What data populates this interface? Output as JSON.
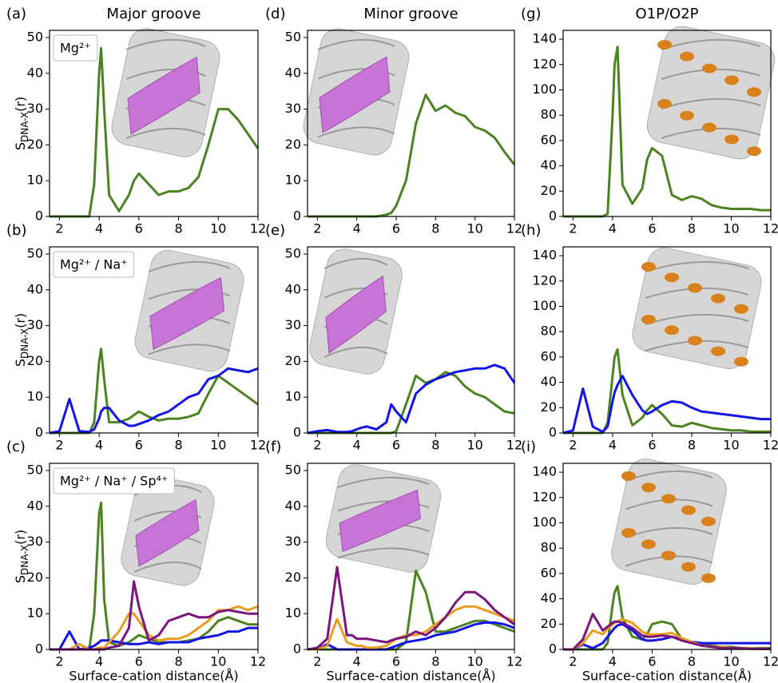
{
  "chart_data": [
    {
      "type": "line",
      "panel_label": "(a)",
      "title": "Major groove",
      "ylabel": [
        "S",
        "DNA-X",
        "(r)"
      ],
      "label": "Mg²⁺",
      "x": [
        1.5,
        2,
        2.5,
        3,
        3.5,
        3.75,
        4,
        4.1,
        4.25,
        4.5,
        5,
        5.5,
        5.75,
        6,
        6.5,
        7,
        7.5,
        8,
        8.5,
        9,
        9.5,
        10,
        10.5,
        11,
        11.5,
        12
      ],
      "xlim": [
        1.5,
        12
      ],
      "ylim": [
        0,
        52
      ],
      "xticks": [
        2,
        4,
        6,
        8,
        10,
        12
      ],
      "yticks": [
        0,
        10,
        20,
        30,
        40,
        50
      ],
      "series": [
        {
          "color": "#4b8321",
          "values": [
            0,
            0,
            0,
            0,
            0,
            9,
            40,
            47,
            30,
            6,
            1.5,
            6,
            10,
            12,
            9,
            6,
            7,
            7,
            8,
            11,
            20,
            30,
            30,
            27,
            23,
            19
          ]
        }
      ]
    },
    {
      "type": "line",
      "panel_label": "(d)",
      "title": "Minor groove",
      "x": [
        1.5,
        2,
        2.5,
        3,
        3.5,
        3.75,
        4,
        4.1,
        4.25,
        4.5,
        5,
        5.5,
        5.75,
        6,
        6.5,
        7,
        7.5,
        8,
        8.5,
        9,
        9.5,
        10,
        10.5,
        11,
        11.5,
        12
      ],
      "xlim": [
        1.5,
        12
      ],
      "ylim": [
        0,
        52
      ],
      "xticks": [
        2,
        4,
        6,
        8,
        10,
        12
      ],
      "yticks": [
        0,
        10,
        20,
        30,
        40,
        50
      ],
      "series": [
        {
          "color": "#4b8321",
          "values": [
            0,
            0,
            0,
            0,
            0,
            0,
            0,
            0,
            0,
            0,
            0,
            0.5,
            1,
            3,
            10,
            26,
            34,
            29.5,
            31,
            29,
            28,
            25,
            24,
            22,
            18,
            14.5
          ]
        }
      ]
    },
    {
      "type": "line",
      "panel_label": "(g)",
      "title": "O1P/O2P",
      "x": [
        1.5,
        2,
        2.5,
        3,
        3.5,
        3.75,
        4,
        4.1,
        4.25,
        4.5,
        5,
        5.5,
        5.75,
        6,
        6.5,
        7,
        7.5,
        8,
        8.5,
        9,
        9.5,
        10,
        10.5,
        11,
        11.5,
        12
      ],
      "xlim": [
        1.5,
        12
      ],
      "ylim": [
        0,
        147
      ],
      "xticks": [
        2,
        4,
        6,
        8,
        10,
        12
      ],
      "yticks": [
        0,
        20,
        40,
        60,
        80,
        100,
        120,
        140
      ],
      "series": [
        {
          "color": "#4b8321",
          "values": [
            0,
            0,
            0,
            0,
            0,
            2,
            80,
            120,
            134,
            25,
            10,
            22,
            45,
            54,
            48,
            17,
            13,
            16,
            14,
            9,
            7,
            6,
            6,
            6,
            5,
            5
          ]
        }
      ]
    },
    {
      "type": "line",
      "panel_label": "(b)",
      "ylabel": [
        "S",
        "DNA-X",
        "(r)"
      ],
      "label": "Mg²⁺ / Na⁺",
      "x": [
        1.5,
        2,
        2.5,
        3,
        3.5,
        3.75,
        4,
        4.1,
        4.25,
        4.5,
        5,
        5.5,
        5.75,
        6,
        6.5,
        7,
        7.5,
        8,
        8.5,
        9,
        9.5,
        10,
        10.5,
        11,
        11.5,
        12
      ],
      "xlim": [
        1.5,
        12
      ],
      "ylim": [
        0,
        52
      ],
      "xticks": [
        2,
        4,
        6,
        8,
        10,
        12
      ],
      "yticks": [
        0,
        10,
        20,
        30,
        40,
        50
      ],
      "series": [
        {
          "color": "#4b8321",
          "values": [
            0,
            0,
            0,
            0,
            0,
            3,
            20,
            23.5,
            15,
            3,
            3,
            4,
            5,
            6,
            4.5,
            3.5,
            4,
            4,
            4.5,
            5.5,
            11,
            16,
            14,
            12,
            10,
            8
          ]
        },
        {
          "color": "#1414e6",
          "values": [
            0,
            0.5,
            9.5,
            0.5,
            0.3,
            1,
            4,
            6,
            7,
            7,
            3.5,
            2,
            2,
            2.5,
            3.5,
            5,
            6,
            8,
            10,
            11,
            15,
            16,
            18,
            17.5,
            17,
            18
          ]
        }
      ]
    },
    {
      "type": "line",
      "panel_label": "(e)",
      "x": [
        1.5,
        2,
        2.5,
        3,
        3.5,
        3.75,
        4,
        4.1,
        4.25,
        4.5,
        5,
        5.5,
        5.75,
        6,
        6.5,
        7,
        7.5,
        8,
        8.5,
        9,
        9.5,
        10,
        10.5,
        11,
        11.5,
        12
      ],
      "xlim": [
        1.5,
        12
      ],
      "ylim": [
        0,
        52
      ],
      "xticks": [
        2,
        4,
        6,
        8,
        10,
        12
      ],
      "yticks": [
        0,
        10,
        20,
        30,
        40,
        50
      ],
      "series": [
        {
          "color": "#4b8321",
          "values": [
            0,
            0,
            0,
            0,
            0,
            0,
            0,
            0,
            0,
            0,
            0,
            0,
            0,
            0.5,
            8,
            16,
            14,
            15,
            17,
            16,
            13,
            11,
            10,
            8,
            6,
            5.5
          ]
        },
        {
          "color": "#1414e6",
          "values": [
            0,
            0.5,
            0.8,
            0.3,
            0.3,
            0.5,
            1,
            1.2,
            1.5,
            1.8,
            1,
            3,
            8,
            6,
            3,
            11,
            13.5,
            15,
            16,
            17,
            17.5,
            18,
            18,
            19,
            18,
            14
          ]
        }
      ]
    },
    {
      "type": "line",
      "panel_label": "(h)",
      "x": [
        1.5,
        2,
        2.5,
        3,
        3.5,
        3.75,
        4,
        4.1,
        4.25,
        4.5,
        5,
        5.5,
        5.75,
        6,
        6.5,
        7,
        7.5,
        8,
        8.5,
        9,
        9.5,
        10,
        10.5,
        11,
        11.5,
        12
      ],
      "xlim": [
        1.5,
        12
      ],
      "ylim": [
        0,
        147
      ],
      "xticks": [
        2,
        4,
        6,
        8,
        10,
        12
      ],
      "yticks": [
        0,
        20,
        40,
        60,
        80,
        100,
        120,
        140
      ],
      "series": [
        {
          "color": "#4b8321",
          "values": [
            0,
            0,
            0,
            0,
            0,
            8,
            45,
            60,
            66,
            30,
            6,
            12,
            18,
            22,
            15,
            6,
            5,
            8,
            6,
            4,
            3,
            2,
            2,
            1,
            1,
            1
          ]
        },
        {
          "color": "#1414e6",
          "values": [
            0,
            2,
            35,
            5,
            1,
            5,
            25,
            32,
            38,
            45,
            30,
            18,
            15,
            17,
            22,
            25,
            24,
            20,
            17,
            16,
            15,
            14,
            13,
            12,
            11,
            11
          ]
        }
      ]
    },
    {
      "type": "line",
      "panel_label": "(c)",
      "ylabel": [
        "S",
        "DNA-X",
        "(r)"
      ],
      "label": "Mg²⁺ / Na⁺ / Sp⁴⁺",
      "xlabel": "Surface-cation distance(Å)",
      "x": [
        1.5,
        2,
        2.5,
        3,
        3.5,
        3.75,
        4,
        4.1,
        4.25,
        4.5,
        5,
        5.5,
        5.75,
        6,
        6.5,
        7,
        7.5,
        8,
        8.5,
        9,
        9.5,
        10,
        10.5,
        11,
        11.5,
        12
      ],
      "xlim": [
        1.5,
        12
      ],
      "ylim": [
        0,
        52
      ],
      "xticks": [
        2,
        4,
        6,
        8,
        10,
        12
      ],
      "yticks": [
        0,
        10,
        20,
        30,
        40,
        50
      ],
      "series": [
        {
          "color": "#4b8321",
          "values": [
            0,
            0,
            0,
            0,
            0,
            10,
            38,
            41,
            14,
            2,
            1,
            2,
            3,
            4,
            3,
            2,
            2,
            2,
            2.5,
            3,
            5,
            8,
            9,
            8,
            7,
            7
          ]
        },
        {
          "color": "#1414e6",
          "values": [
            0,
            0,
            5,
            0,
            0.5,
            1,
            2,
            2.5,
            2.5,
            2.5,
            2,
            1.5,
            1.5,
            1.5,
            2,
            1.5,
            2,
            2,
            2,
            3,
            3.5,
            4,
            5,
            5,
            6,
            6
          ]
        },
        {
          "color": "#e89c22",
          "values": [
            0,
            0,
            0,
            1.5,
            0,
            0,
            0.5,
            0.5,
            0.5,
            2,
            5,
            10,
            10,
            8,
            4,
            2.5,
            3,
            3,
            4,
            6,
            8,
            11,
            11,
            12,
            11,
            12
          ]
        },
        {
          "color": "#7a167e",
          "values": [
            0,
            0,
            0,
            0,
            0,
            0,
            0,
            0,
            0,
            0.5,
            1,
            6,
            19,
            12,
            2.5,
            4,
            8,
            9,
            10,
            9,
            9,
            10.5,
            11,
            10.5,
            10,
            10
          ]
        }
      ]
    },
    {
      "type": "line",
      "panel_label": "(f)",
      "xlabel": "Surface-cation distance(Å)",
      "x": [
        1.5,
        2,
        2.5,
        3,
        3.5,
        3.75,
        4,
        4.1,
        4.25,
        4.5,
        5,
        5.5,
        5.75,
        6,
        6.5,
        7,
        7.5,
        8,
        8.5,
        9,
        9.5,
        10,
        10.5,
        11,
        11.5,
        12
      ],
      "xlim": [
        1.5,
        12
      ],
      "ylim": [
        0,
        52
      ],
      "xticks": [
        2,
        4,
        6,
        8,
        10,
        12
      ],
      "yticks": [
        0,
        10,
        20,
        30,
        40,
        50
      ],
      "series": [
        {
          "color": "#4b8321",
          "values": [
            0,
            0,
            0,
            0,
            0,
            0,
            0,
            0,
            0,
            0,
            0,
            0,
            0,
            0,
            2,
            22,
            16,
            5,
            5,
            6,
            7,
            8,
            8,
            7,
            6,
            5
          ]
        },
        {
          "color": "#1414e6",
          "values": [
            0,
            0,
            1.5,
            0,
            0,
            0,
            0,
            0,
            0,
            0,
            0,
            0,
            0.5,
            1,
            2,
            2.5,
            3,
            4,
            4.5,
            5,
            6,
            7,
            7.5,
            7.5,
            7,
            6
          ]
        },
        {
          "color": "#e89c22",
          "values": [
            0,
            0,
            1,
            8.5,
            2,
            1.5,
            1,
            1,
            1,
            0.5,
            0.5,
            1,
            2,
            3,
            4,
            4,
            5,
            7,
            9,
            11,
            12,
            12,
            11,
            10,
            9,
            8
          ]
        },
        {
          "color": "#7a167e",
          "values": [
            0,
            0.5,
            3,
            23,
            4,
            4,
            3,
            3,
            3,
            3,
            2.5,
            2,
            2.5,
            3,
            3.5,
            5,
            4,
            6,
            9,
            13,
            16,
            16,
            14,
            11,
            9,
            7
          ]
        }
      ]
    },
    {
      "type": "line",
      "panel_label": "(i)",
      "xlabel": "Surface-cation distance(Å)",
      "x": [
        1.5,
        2,
        2.5,
        3,
        3.5,
        3.75,
        4,
        4.1,
        4.25,
        4.5,
        5,
        5.5,
        5.75,
        6,
        6.5,
        7,
        7.5,
        8,
        8.5,
        9,
        9.5,
        10,
        10.5,
        11,
        11.5,
        12
      ],
      "xlim": [
        1.5,
        12
      ],
      "ylim": [
        0,
        147
      ],
      "xticks": [
        2,
        4,
        6,
        8,
        10,
        12
      ],
      "yticks": [
        0,
        20,
        40,
        60,
        80,
        100,
        120,
        140
      ],
      "series": [
        {
          "color": "#4b8321",
          "values": [
            0,
            0,
            0,
            0,
            0,
            5,
            35,
            45,
            50,
            25,
            10,
            8,
            12,
            20,
            22,
            20,
            8,
            6,
            5,
            3,
            2,
            2,
            1,
            1,
            1,
            1
          ]
        },
        {
          "color": "#1414e6",
          "values": [
            0,
            0,
            4,
            1,
            5,
            10,
            15,
            17,
            19,
            20,
            15,
            8,
            7,
            7,
            8,
            10,
            8,
            6,
            5,
            5,
            5,
            5,
            5,
            5,
            5,
            5
          ]
        },
        {
          "color": "#e89c22",
          "values": [
            0,
            0,
            5,
            15,
            12,
            16,
            20,
            21,
            22,
            24,
            21,
            14,
            12,
            12,
            12,
            13,
            9,
            6,
            3,
            2,
            2,
            1,
            1,
            1,
            0.5,
            0.5
          ]
        },
        {
          "color": "#7a167e",
          "values": [
            0,
            0,
            8,
            28,
            15,
            18,
            21,
            22,
            22,
            21,
            17,
            11,
            10,
            10,
            11,
            10,
            7,
            5,
            3,
            2,
            1,
            1,
            1,
            0.5,
            0.5,
            0.5
          ]
        }
      ]
    }
  ]
}
